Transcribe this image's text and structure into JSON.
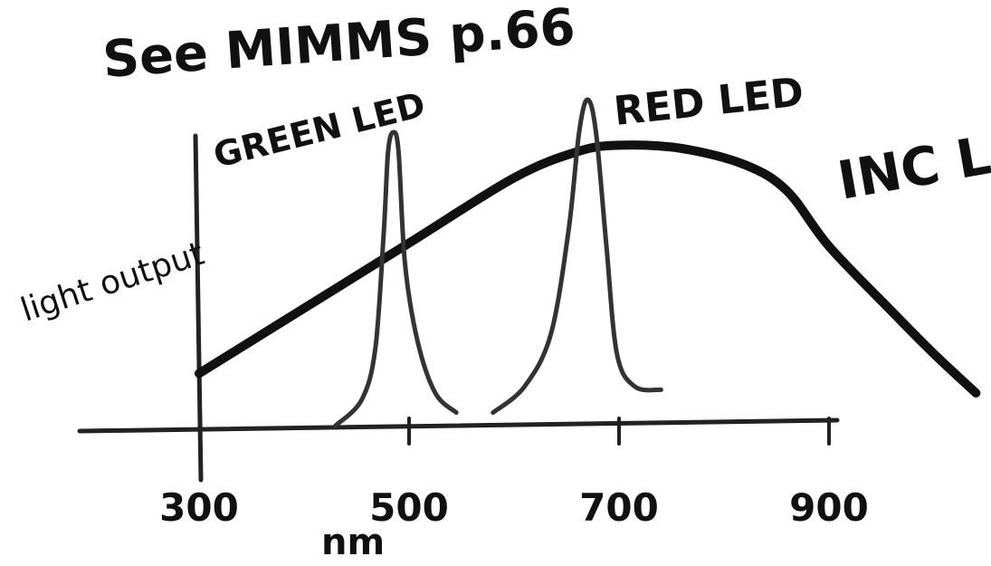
{
  "chart_data": {
    "type": "line",
    "title": "See MIMMS p.66",
    "xlabel": "nm",
    "ylabel": "light output",
    "xlim": [
      300,
      1050
    ],
    "ylim": [
      0,
      100
    ],
    "x_ticks": [
      {
        "value": 300,
        "label": "300"
      },
      {
        "value": 500,
        "label": "500"
      },
      {
        "value": 700,
        "label": "700"
      },
      {
        "value": 900,
        "label": "900"
      }
    ],
    "grid": false,
    "series": [
      {
        "name": "INC LAMP",
        "style": "thick",
        "points": [
          [
            300,
            16
          ],
          [
            400,
            36
          ],
          [
            500,
            56
          ],
          [
            600,
            76
          ],
          [
            660,
            84
          ],
          [
            700,
            86
          ],
          [
            760,
            85
          ],
          [
            820,
            80
          ],
          [
            860,
            72
          ],
          [
            900,
            55
          ],
          [
            960,
            35
          ],
          [
            1000,
            22
          ],
          [
            1040,
            10
          ]
        ]
      },
      {
        "name": "RED LED",
        "style": "thin",
        "points": [
          [
            580,
            4
          ],
          [
            610,
            12
          ],
          [
            635,
            28
          ],
          [
            652,
            60
          ],
          [
            662,
            90
          ],
          [
            670,
            100
          ],
          [
            678,
            90
          ],
          [
            688,
            55
          ],
          [
            698,
            22
          ],
          [
            715,
            12
          ],
          [
            740,
            11
          ]
        ]
      },
      {
        "name": "GREEN LED",
        "style": "thin",
        "points": [
          [
            430,
            0
          ],
          [
            455,
            8
          ],
          [
            468,
            24
          ],
          [
            476,
            60
          ],
          [
            480,
            84
          ],
          [
            485,
            90
          ],
          [
            490,
            84
          ],
          [
            496,
            50
          ],
          [
            508,
            26
          ],
          [
            525,
            10
          ],
          [
            545,
            4
          ]
        ]
      }
    ]
  },
  "colors": {
    "ink": "#111111",
    "pencil": "#555555",
    "paper": "#ffffff"
  }
}
